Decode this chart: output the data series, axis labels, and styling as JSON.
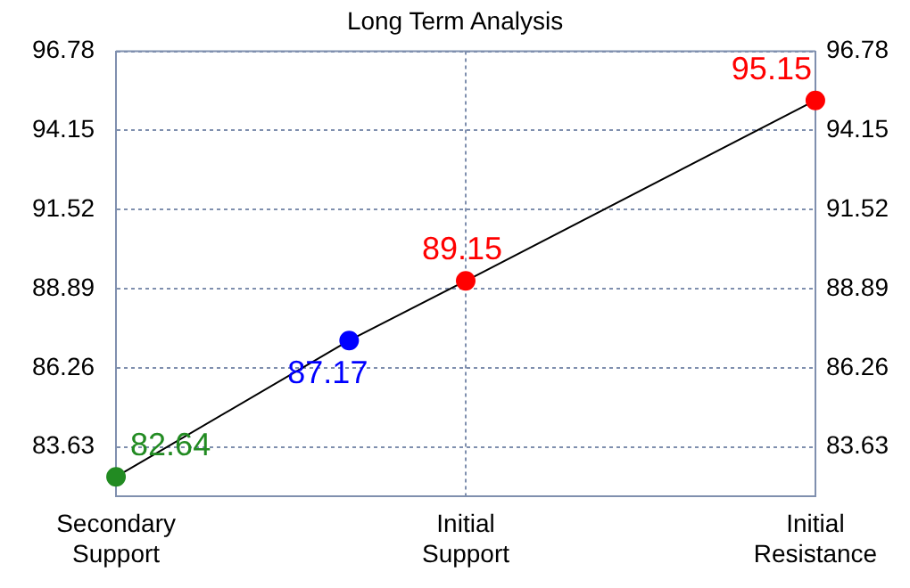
{
  "chart_data": {
    "type": "line",
    "title": "Long Term Analysis",
    "categories": [
      "Secondary Support",
      null,
      null,
      "Initial Support",
      null,
      null,
      "Initial Resistance"
    ],
    "series": [
      {
        "color": "#000000",
        "colors": [
          "#228b22",
          null,
          "#0000ff",
          "#ff0000",
          null,
          null,
          "#ff0000"
        ],
        "values": [
          82.64,
          null,
          87.17,
          89.15,
          null,
          null,
          95.15
        ]
      }
    ],
    "ylim": [
      82.0,
      96.78
    ],
    "yticks": [
      83.63,
      86.26,
      88.89,
      91.52,
      94.15,
      96.78
    ],
    "y2lim": [
      82.0,
      96.78
    ],
    "y2ticks": [
      83.63,
      86.26,
      88.89,
      91.52,
      94.15,
      96.78
    ],
    "data_labels": true,
    "grid": true,
    "marker": "circle",
    "line_style": "solid",
    "legend": false
  }
}
